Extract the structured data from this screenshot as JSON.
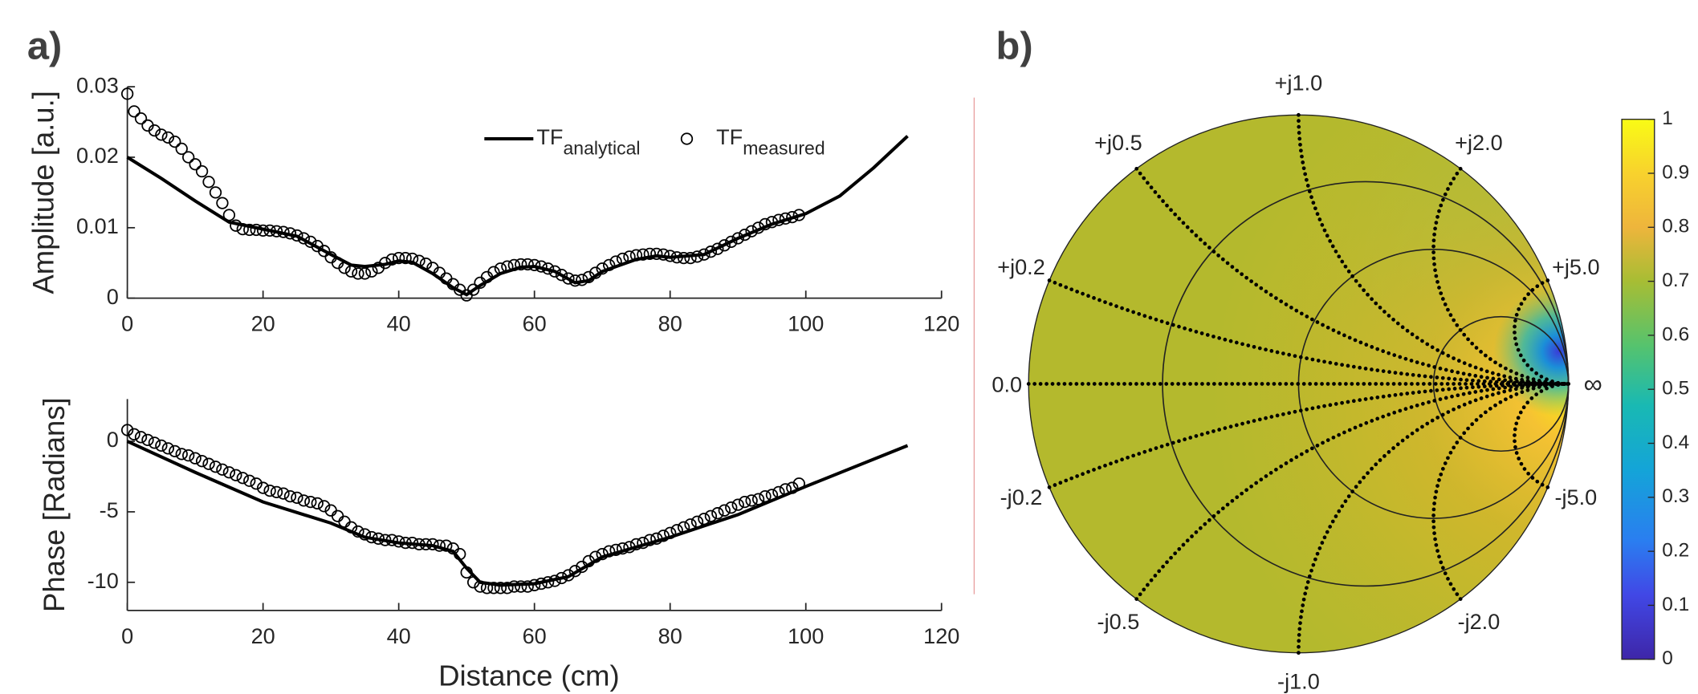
{
  "panels": [
    "a)",
    "b)"
  ],
  "chart_data": [
    {
      "type": "line",
      "ylabel": "Amplitude [a.u.]",
      "xlim": [
        0,
        120
      ],
      "xticks": [
        0,
        20,
        40,
        60,
        80,
        100,
        120
      ],
      "ylim": [
        0,
        0.03
      ],
      "yticks": [
        0,
        0.01,
        0.02,
        0.03
      ],
      "legend": "top",
      "series": [
        {
          "name": "TF",
          "subscript": "analytical",
          "mode": "line",
          "color": "#000000",
          "x": [
            0,
            5,
            10,
            15,
            20,
            25,
            30,
            33,
            35,
            38,
            40,
            42,
            45,
            48,
            50,
            52,
            55,
            58,
            60,
            63,
            66,
            68,
            70,
            75,
            78,
            80,
            85,
            90,
            95,
            100,
            105,
            110,
            115
          ],
          "values": [
            0.02,
            0.017,
            0.0138,
            0.0108,
            0.0098,
            0.0088,
            0.0062,
            0.0047,
            0.0045,
            0.0048,
            0.0053,
            0.0051,
            0.0035,
            0.0015,
            0.0005,
            0.0018,
            0.0035,
            0.0044,
            0.0045,
            0.0038,
            0.0022,
            0.0025,
            0.0038,
            0.0055,
            0.006,
            0.0058,
            0.0062,
            0.0085,
            0.0105,
            0.012,
            0.0145,
            0.0185,
            0.023
          ]
        },
        {
          "name": "TF",
          "subscript": "measured",
          "mode": "markers",
          "color": "#000000",
          "x": [
            0,
            1,
            2,
            3,
            4,
            5,
            6,
            7,
            8,
            9,
            10,
            11,
            12,
            13,
            14,
            15,
            16,
            17,
            18,
            19,
            20,
            21,
            22,
            23,
            24,
            25,
            26,
            27,
            28,
            29,
            30,
            31,
            32,
            33,
            34,
            35,
            36,
            37,
            38,
            39,
            40,
            41,
            42,
            43,
            44,
            45,
            46,
            47,
            48,
            49,
            50,
            51,
            52,
            53,
            54,
            55,
            56,
            57,
            58,
            59,
            60,
            61,
            62,
            63,
            64,
            65,
            66,
            67,
            68,
            69,
            70,
            71,
            72,
            73,
            74,
            75,
            76,
            77,
            78,
            79,
            80,
            81,
            82,
            83,
            84,
            85,
            86,
            87,
            88,
            89,
            90,
            91,
            92,
            93,
            94,
            95,
            96,
            97,
            98,
            99
          ],
          "values": [
            0.029,
            0.0265,
            0.0255,
            0.0245,
            0.0238,
            0.0232,
            0.0228,
            0.0222,
            0.0212,
            0.02,
            0.019,
            0.018,
            0.0165,
            0.015,
            0.0135,
            0.0118,
            0.0103,
            0.0098,
            0.0097,
            0.0097,
            0.0096,
            0.0096,
            0.0095,
            0.0094,
            0.0092,
            0.0089,
            0.0085,
            0.008,
            0.0074,
            0.0067,
            0.0058,
            0.005,
            0.0043,
            0.0038,
            0.0035,
            0.0035,
            0.0038,
            0.0043,
            0.005,
            0.0055,
            0.0057,
            0.0057,
            0.0056,
            0.0053,
            0.0049,
            0.0043,
            0.0036,
            0.0028,
            0.002,
            0.0012,
            0.0004,
            0.0012,
            0.0022,
            0.003,
            0.0037,
            0.0042,
            0.0045,
            0.0047,
            0.0048,
            0.0048,
            0.0047,
            0.0045,
            0.0042,
            0.0038,
            0.0033,
            0.0028,
            0.0025,
            0.0026,
            0.003,
            0.0036,
            0.0042,
            0.0047,
            0.0052,
            0.0056,
            0.0059,
            0.0061,
            0.0062,
            0.0063,
            0.0063,
            0.0062,
            0.006,
            0.0058,
            0.0057,
            0.0057,
            0.0059,
            0.0062,
            0.0066,
            0.007,
            0.0075,
            0.008,
            0.0085,
            0.009,
            0.0095,
            0.01,
            0.0105,
            0.0108,
            0.0111,
            0.0113,
            0.0115,
            0.0118
          ]
        }
      ]
    },
    {
      "type": "line",
      "ylabel": "Phase [Radians]",
      "xlabel": "Distance (cm)",
      "xlim": [
        0,
        120
      ],
      "xticks": [
        0,
        20,
        40,
        60,
        80,
        100,
        120
      ],
      "ylim": [
        -12,
        3
      ],
      "yticks": [
        -10,
        -5,
        0
      ],
      "series": [
        {
          "mode": "line",
          "color": "#000000",
          "x": [
            0,
            10,
            20,
            30,
            35,
            40,
            45,
            48,
            50,
            52,
            55,
            60,
            65,
            70,
            80,
            90,
            100,
            115
          ],
          "values": [
            0,
            -2.2,
            -4.3,
            -5.8,
            -6.8,
            -7.2,
            -7.4,
            -7.8,
            -9,
            -10,
            -10.2,
            -10.1,
            -9.6,
            -8.2,
            -6.8,
            -5.2,
            -3.2,
            -0.3
          ]
        },
        {
          "mode": "markers",
          "color": "#000000",
          "x": [
            0,
            1,
            2,
            3,
            4,
            5,
            6,
            7,
            8,
            9,
            10,
            11,
            12,
            13,
            14,
            15,
            16,
            17,
            18,
            19,
            20,
            21,
            22,
            23,
            24,
            25,
            26,
            27,
            28,
            29,
            30,
            31,
            32,
            33,
            34,
            35,
            36,
            37,
            38,
            39,
            40,
            41,
            42,
            43,
            44,
            45,
            46,
            47,
            48,
            49,
            50,
            51,
            52,
            53,
            54,
            55,
            56,
            57,
            58,
            59,
            60,
            61,
            62,
            63,
            64,
            65,
            66,
            67,
            68,
            69,
            70,
            71,
            72,
            73,
            74,
            75,
            76,
            77,
            78,
            79,
            80,
            81,
            82,
            83,
            84,
            85,
            86,
            87,
            88,
            89,
            90,
            91,
            92,
            93,
            94,
            95,
            96,
            97,
            98,
            99
          ],
          "values": [
            0.8,
            0.5,
            0.3,
            0.1,
            -0.1,
            -0.3,
            -0.5,
            -0.7,
            -0.9,
            -1.0,
            -1.2,
            -1.4,
            -1.6,
            -1.8,
            -2.0,
            -2.2,
            -2.4,
            -2.6,
            -2.8,
            -3.0,
            -3.3,
            -3.5,
            -3.6,
            -3.7,
            -3.9,
            -4.0,
            -4.2,
            -4.3,
            -4.4,
            -4.6,
            -4.9,
            -5.3,
            -5.7,
            -6.1,
            -6.4,
            -6.6,
            -6.8,
            -6.9,
            -7.0,
            -7.0,
            -7.1,
            -7.2,
            -7.2,
            -7.3,
            -7.3,
            -7.3,
            -7.4,
            -7.4,
            -7.6,
            -8.0,
            -9.3,
            -10.0,
            -10.3,
            -10.4,
            -10.4,
            -10.4,
            -10.4,
            -10.3,
            -10.3,
            -10.3,
            -10.2,
            -10.1,
            -10.0,
            -9.9,
            -9.7,
            -9.5,
            -9.2,
            -8.9,
            -8.5,
            -8.2,
            -8.0,
            -7.8,
            -7.7,
            -7.6,
            -7.5,
            -7.3,
            -7.2,
            -7.0,
            -6.9,
            -6.7,
            -6.5,
            -6.3,
            -6.1,
            -5.9,
            -5.7,
            -5.5,
            -5.3,
            -5.1,
            -4.9,
            -4.7,
            -4.5,
            -4.3,
            -4.2,
            -4.1,
            -3.9,
            -3.8,
            -3.6,
            -3.4,
            -3.3,
            -3.0
          ]
        }
      ]
    },
    {
      "type": "smith",
      "reactance_ticks": [
        {
          "value": 1,
          "label": "+j1.0"
        },
        {
          "value": 0.5,
          "label": "+j0.5"
        },
        {
          "value": 2,
          "label": "+j2.0"
        },
        {
          "value": 0.2,
          "label": "+j0.2"
        },
        {
          "value": 5,
          "label": "+j5.0"
        },
        {
          "value": -0.2,
          "label": "-j0.2"
        },
        {
          "value": -5,
          "label": "-j5.0"
        },
        {
          "value": -0.5,
          "label": "-j0.5"
        },
        {
          "value": -2,
          "label": "-j2.0"
        },
        {
          "value": -1,
          "label": "-j1.0"
        }
      ],
      "resistance_circles": [
        0.33,
        1,
        3
      ],
      "real_axis_labels": [
        "0.0",
        "∞"
      ],
      "clim": [
        0,
        1
      ],
      "cticks": [
        0,
        0.1,
        0.2,
        0.3,
        0.4,
        0.5,
        0.6,
        0.7,
        0.8,
        0.9,
        1
      ]
    }
  ]
}
